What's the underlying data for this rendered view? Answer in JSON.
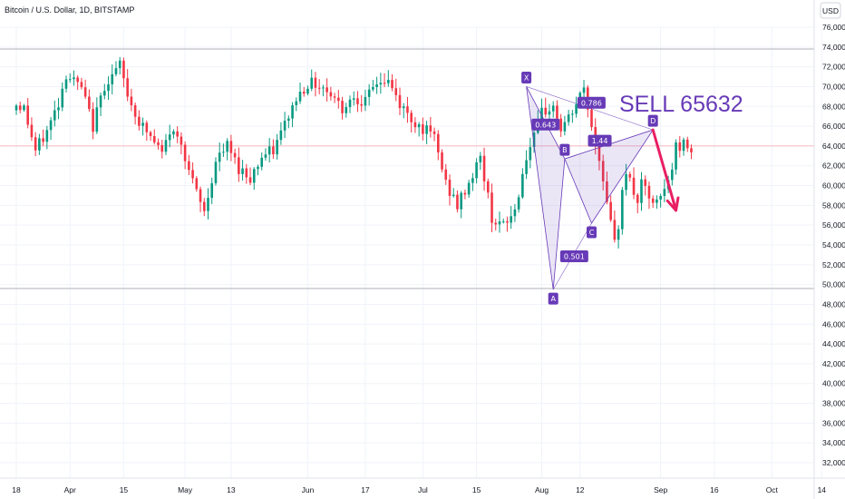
{
  "header": {
    "title": "Bitcoin / U.S. Dollar, 1D, BITSTAMP",
    "currency": "USD"
  },
  "colors": {
    "up": "#089981",
    "down": "#f23645",
    "pattern": "#673ab7",
    "arrow": "#e91e63",
    "level": "#f7a3a8",
    "hline": "#9598a1",
    "grid": "#f0f3fa"
  },
  "annotation": {
    "text": "SELL 65632"
  },
  "chart_data": {
    "type": "candlestick",
    "x_axis_ticks": [
      "18",
      "Apr",
      "15",
      "May",
      "13",
      "Jun",
      "17",
      "Jul",
      "15",
      "Aug",
      "12",
      "Sep",
      "16",
      "Oct",
      "14"
    ],
    "y_axis_ticks": [
      76000,
      74000,
      72000,
      70000,
      68000,
      66000,
      64000,
      62000,
      60000,
      58000,
      56000,
      54000,
      52000,
      50000,
      48000,
      46000,
      44000,
      42000,
      40000,
      38000,
      36000,
      34000,
      32000
    ],
    "y_axis_labels": [
      "76,000",
      "74,000",
      "72,000",
      "70,000",
      "68,000",
      "66,000",
      "64,000",
      "62,000",
      "60,000",
      "58,000",
      "56,000",
      "54,000",
      "52,000",
      "50,000",
      "48,000",
      "46,000",
      "44,000",
      "42,000",
      "40,000",
      "38,000",
      "36,000",
      "34,000",
      "32,000"
    ],
    "ylim": [
      31000,
      77300
    ],
    "horizontal_lines": [
      73800,
      49600
    ],
    "current_price_level": 64000,
    "harmonic_pattern": {
      "points": [
        {
          "label": "X",
          "date": "2024-07-29",
          "price": 70000
        },
        {
          "label": "A",
          "date": "2024-08-05",
          "price": 49500
        },
        {
          "label": "B",
          "date": "2024-08-08",
          "price": 62700
        },
        {
          "label": "C",
          "date": "2024-08-15",
          "price": 56200
        },
        {
          "label": "D",
          "date": "2024-08-31",
          "price": 65632
        }
      ],
      "ratios": [
        "0.643",
        "0.786",
        "0.501",
        "1.44"
      ]
    },
    "projection_arrow": {
      "from_date": "2024-08-31",
      "from_price": 65632,
      "to_date": "2024-09-06",
      "to_price": 57500
    }
  }
}
